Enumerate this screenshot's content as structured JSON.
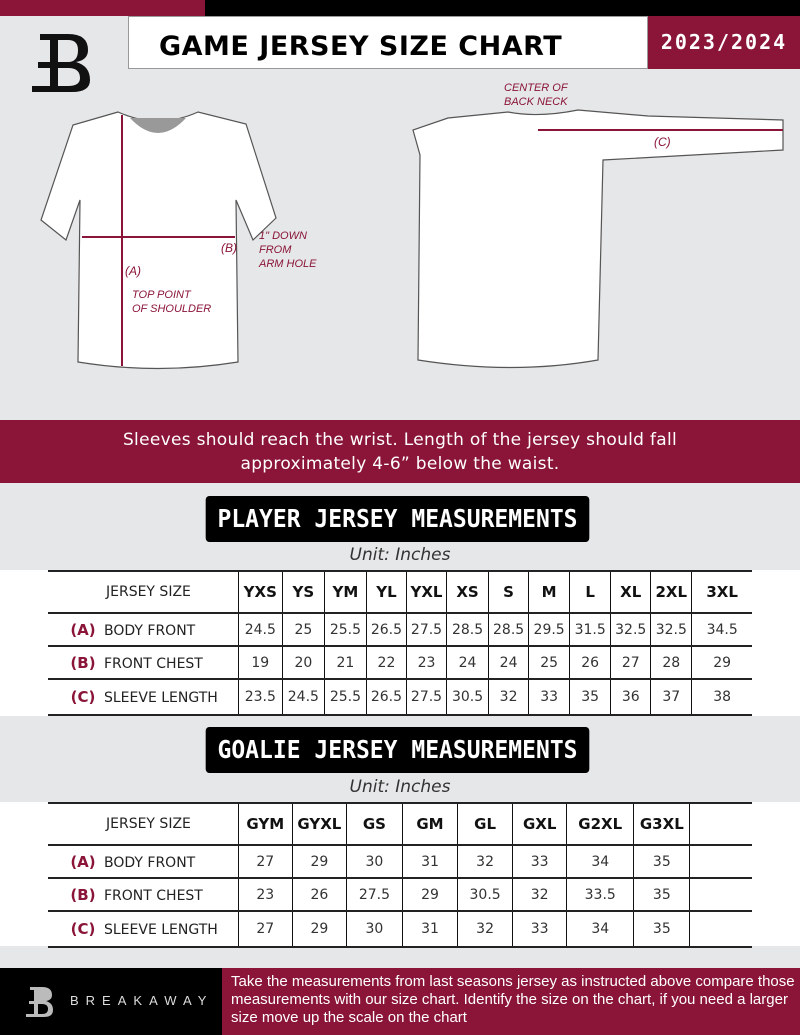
{
  "header": {
    "title": "GAME JERSEY SIZE CHART",
    "season": "2023/2024"
  },
  "diagram": {
    "front_labels": {
      "a": "(A)",
      "b": "(B)",
      "top_point": "TOP POINT\nOF SHOULDER",
      "down_from_arm": "1\" DOWN\nFROM\nARM HOLE"
    },
    "back_labels": {
      "c": "(C)",
      "center_back": "CENTER OF\nBACK NECK"
    }
  },
  "banner": {
    "line1": "Sleeves should reach the wrist. Length of the jersey should fall",
    "line2": "approximately 4-6” below the waist."
  },
  "player": {
    "heading": "PLAYER JERSEY MEASUREMENTS",
    "unit": "Unit: Inches",
    "size_label": "JERSEY SIZE",
    "sizes": [
      "YXS",
      "YS",
      "YM",
      "YL",
      "YXL",
      "XS",
      "S",
      "M",
      "L",
      "XL",
      "2XL",
      "3XL"
    ],
    "rows": [
      {
        "letter": "(A)",
        "name": "BODY FRONT",
        "values": [
          "24.5",
          "25",
          "25.5",
          "26.5",
          "27.5",
          "28.5",
          "28.5",
          "29.5",
          "31.5",
          "32.5",
          "32.5",
          "34.5"
        ]
      },
      {
        "letter": "(B)",
        "name": "FRONT CHEST",
        "values": [
          "19",
          "20",
          "21",
          "22",
          "23",
          "24",
          "24",
          "25",
          "26",
          "27",
          "28",
          "29"
        ]
      },
      {
        "letter": "(C)",
        "name": "SLEEVE LENGTH",
        "values": [
          "23.5",
          "24.5",
          "25.5",
          "26.5",
          "27.5",
          "30.5",
          "32",
          "33",
          "35",
          "36",
          "37",
          "38"
        ]
      }
    ]
  },
  "goalie": {
    "heading": "GOALIE JERSEY MEASUREMENTS",
    "unit": "Unit: Inches",
    "size_label": "JERSEY SIZE",
    "sizes": [
      "GYM",
      "GYXL",
      "GS",
      "GM",
      "GL",
      "GXL",
      "G2XL",
      "G3XL",
      ""
    ],
    "rows": [
      {
        "letter": "(A)",
        "name": "BODY FRONT",
        "values": [
          "27",
          "29",
          "30",
          "31",
          "32",
          "33",
          "34",
          "35",
          ""
        ]
      },
      {
        "letter": "(B)",
        "name": "FRONT CHEST",
        "values": [
          "23",
          "26",
          "27.5",
          "29",
          "30.5",
          "32",
          "33.5",
          "35",
          ""
        ]
      },
      {
        "letter": "(C)",
        "name": "SLEEVE LENGTH",
        "values": [
          "27",
          "29",
          "30",
          "31",
          "32",
          "33",
          "34",
          "35",
          ""
        ]
      }
    ]
  },
  "footer": {
    "brand": "BREAKAWAY",
    "text": "Take the measurements from last seasons jersey as instructed above compare those measurements  with our size chart. Identify the size on the chart, if you need a larger size move up the scale on the chart"
  },
  "colors": {
    "accent": "#8a1538",
    "dark": "#000000",
    "background": "#e6e7e8"
  }
}
